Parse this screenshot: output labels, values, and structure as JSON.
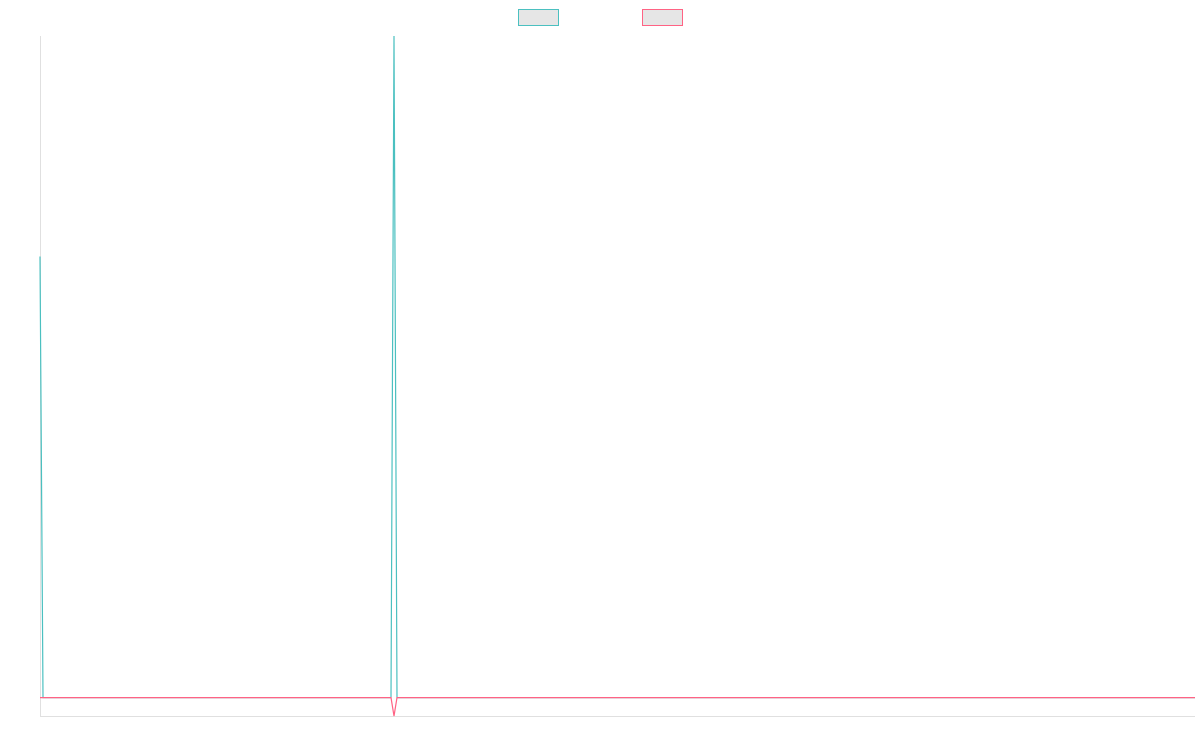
{
  "chart_data": {
    "type": "line",
    "x": [
      0,
      1,
      117,
      118,
      119,
      385
    ],
    "xlim": [
      0,
      385
    ],
    "ylim": [
      -1,
      36
    ],
    "series": [
      {
        "color": "#4bc0c0",
        "values": [
          24,
          0,
          0,
          36,
          0,
          0
        ]
      },
      {
        "color": "#ff6384",
        "values": [
          0,
          0,
          0,
          -1,
          0,
          0
        ]
      }
    ],
    "legend": "top"
  }
}
